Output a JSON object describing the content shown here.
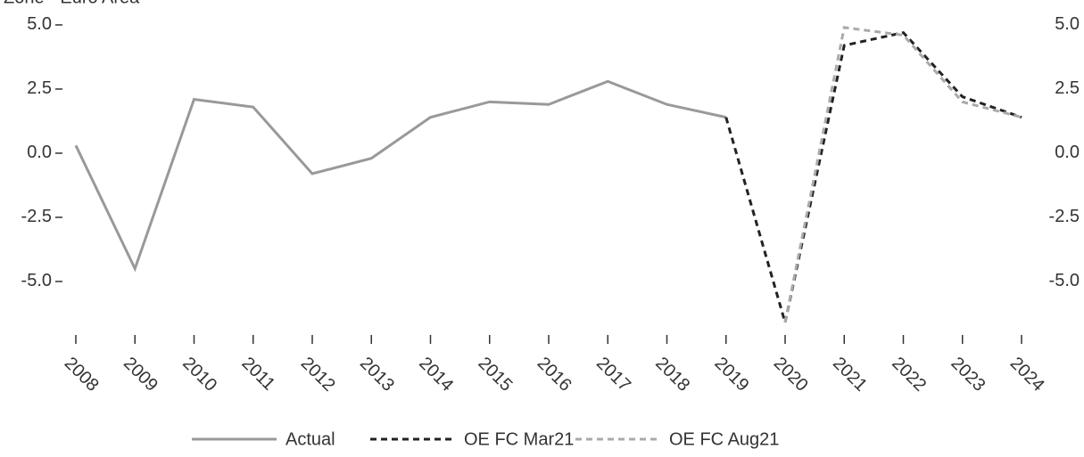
{
  "chart_data": {
    "type": "line",
    "subtitle": "Zone - Euro Area",
    "categories": [
      "2008",
      "2009",
      "2010",
      "2011",
      "2012",
      "2013",
      "2014",
      "2015",
      "2016",
      "2017",
      "2018",
      "2019",
      "2020",
      "2021",
      "2022",
      "2023",
      "2024"
    ],
    "series": [
      {
        "name": "Actual",
        "color": "#999999",
        "dash": false,
        "values": [
          0.3,
          -4.5,
          2.1,
          1.8,
          -0.8,
          -0.2,
          1.4,
          2.0,
          1.9,
          2.8,
          1.9,
          1.4,
          null,
          null,
          null,
          null,
          null
        ]
      },
      {
        "name": "OE FC Mar21",
        "color": "#222222",
        "dash": true,
        "values": [
          null,
          null,
          null,
          null,
          null,
          null,
          null,
          null,
          null,
          null,
          null,
          1.4,
          -6.6,
          4.2,
          4.7,
          2.2,
          1.4
        ]
      },
      {
        "name": "OE FC Aug21",
        "color": "#aaaaaa",
        "dash": true,
        "values": [
          null,
          null,
          null,
          null,
          null,
          null,
          null,
          null,
          null,
          null,
          null,
          null,
          -6.6,
          4.9,
          4.6,
          2.0,
          1.4
        ]
      }
    ],
    "ylim": [
      -6.8,
      5.2
    ],
    "yticks": [
      {
        "value": 5,
        "label": "5.0"
      },
      {
        "value": 2.5,
        "label": "2.5"
      },
      {
        "value": 0,
        "label": "0.0"
      },
      {
        "value": -2.5,
        "label": "-2.5"
      },
      {
        "value": -5,
        "label": "-5.0"
      }
    ],
    "legend": "bottom"
  }
}
